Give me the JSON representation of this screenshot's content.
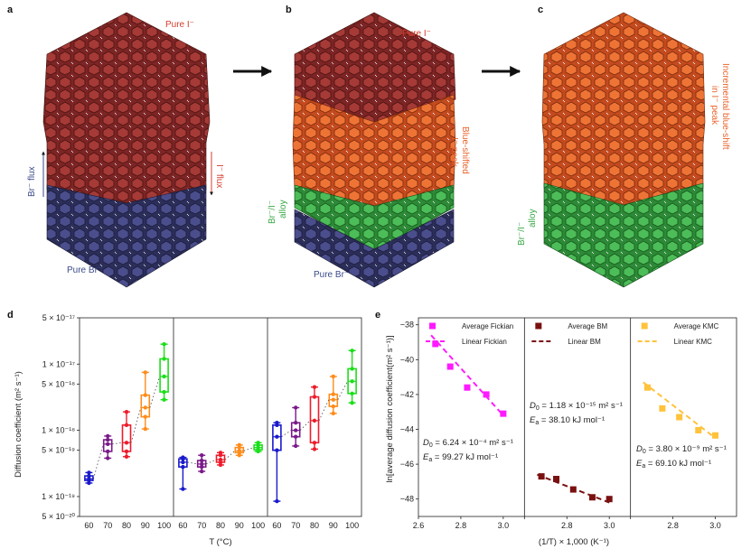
{
  "colors": {
    "iodide": "#8b2a2a",
    "iodide_light": "#e8642c",
    "bromide": "#3d3f78",
    "alloy": "#3ea84a",
    "label_red": "#d43c2c",
    "label_blue": "#3a4a8a",
    "label_green": "#3aa845",
    "label_orange": "#e8642c",
    "magenta": "#ff1aff",
    "maroon": "#7a1010",
    "yellow": "#ffc23a"
  },
  "panels": {
    "a": {
      "letter": "a",
      "top_label": "Pure I⁻",
      "bottom_label": "Pure Br⁻",
      "br_flux": "Br⁻ flux",
      "i_flux": "I⁻ flux"
    },
    "b": {
      "letter": "b",
      "top_label": "Pure I⁻",
      "middle_label_1": "Blue-shifted",
      "middle_label_2": "I⁻ peak",
      "alloy_label_1": "Br⁻/I⁻",
      "alloy_label_2": "alloy",
      "bottom_label": "Pure Br⁻"
    },
    "c": {
      "letter": "c",
      "right_label_1": "Incremental blue-shift",
      "right_label_2": "in I⁻ peak",
      "alloy_label_1": "Br⁻/I⁻",
      "alloy_label_2": "alloy"
    },
    "d": {
      "letter": "d",
      "xlabel": "T (°C)",
      "ylabel": "Diffusion coefficient (m² s⁻¹)"
    },
    "e": {
      "letter": "e",
      "xlabel": "(1/T) × 1,000 (K⁻¹)",
      "ylabel": "ln[average diffusion coefficient(m² s⁻¹)]"
    }
  },
  "chart_data": [
    {
      "type": "box",
      "panel": "d",
      "title": "",
      "xlabel": "T (°C)",
      "ylabel": "Diffusion coefficient (m² s⁻¹)",
      "yscale": "log",
      "ylim": [
        5e-20,
        5e-17
      ],
      "ytick_values": [
        5e-20,
        1e-19,
        5e-19,
        1e-18,
        5e-18,
        1e-17,
        5e-17
      ],
      "ytick_labels": [
        "5 × 10⁻²⁰",
        "1 × 10⁻¹⁹",
        "5 × 10⁻¹⁹",
        "1 × 10⁻¹⁸",
        "5 × 10⁻¹⁸",
        "1 × 10⁻¹⁷",
        "5 × 10⁻¹⁷"
      ],
      "categories": [
        "60",
        "70",
        "80",
        "90",
        "100"
      ],
      "category_colors": [
        "#1a1acc",
        "#7a1a8a",
        "#ee1c2c",
        "#ff8c1a",
        "#1adf1a"
      ],
      "groups": [
        {
          "name": "Fickian",
          "boxes": [
            {
              "min": 1.6e-19,
              "q1": 1.75e-19,
              "median": 1.85e-19,
              "q3": 2.05e-19,
              "max": 2.3e-19
            },
            {
              "min": 3.8e-19,
              "q1": 4.8e-19,
              "median": 6.2e-19,
              "q3": 7.2e-19,
              "max": 8.2e-19
            },
            {
              "min": 4e-19,
              "q1": 4.8e-19,
              "median": 6.5e-19,
              "q3": 1.2e-18,
              "max": 1.9e-18
            },
            {
              "min": 1.05e-18,
              "q1": 1.6e-18,
              "median": 2.2e-18,
              "q3": 3.4e-18,
              "max": 7.5e-18
            },
            {
              "min": 2.9e-18,
              "q1": 3.8e-18,
              "median": 6.5e-18,
              "q3": 1.2e-17,
              "max": 2e-17
            }
          ]
        },
        {
          "name": "BM",
          "boxes": [
            {
              "min": 1.3e-19,
              "q1": 2.8e-19,
              "median": 3.3e-19,
              "q3": 3.7e-19,
              "max": 3.9e-19
            },
            {
              "min": 2.4e-19,
              "q1": 2.8e-19,
              "median": 3.1e-19,
              "q3": 3.5e-19,
              "max": 4.2e-19
            },
            {
              "min": 3e-19,
              "q1": 3.3e-19,
              "median": 3.6e-19,
              "q3": 4.2e-19,
              "max": 4.6e-19
            },
            {
              "min": 4.2e-19,
              "q1": 4.6e-19,
              "median": 4.9e-19,
              "q3": 5.5e-19,
              "max": 6e-19
            },
            {
              "min": 4.8e-19,
              "q1": 5.1e-19,
              "median": 5.5e-19,
              "q3": 6e-19,
              "max": 6.5e-19
            }
          ]
        },
        {
          "name": "KMC",
          "boxes": [
            {
              "min": 8.5e-20,
              "q1": 5e-19,
              "median": 8e-19,
              "q3": 1.2e-18,
              "max": 1.3e-18
            },
            {
              "min": 5.8e-19,
              "q1": 8e-19,
              "median": 1e-18,
              "q3": 1.3e-18,
              "max": 2.2e-18
            },
            {
              "min": 5.2e-19,
              "q1": 6.5e-19,
              "median": 1.4e-18,
              "q3": 3.2e-18,
              "max": 4.5e-18
            },
            {
              "min": 1.8e-18,
              "q1": 2.3e-18,
              "median": 2.9e-18,
              "q3": 3.5e-18,
              "max": 6.5e-18
            },
            {
              "min": 2.6e-18,
              "q1": 3.6e-18,
              "median": 5.5e-18,
              "q3": 8.5e-18,
              "max": 1.6e-17
            }
          ]
        }
      ]
    },
    {
      "type": "scatter",
      "panel": "e",
      "xlabel": "(1/T) × 1,000 (K⁻¹)",
      "ylabel": "ln[average diffusion coefficient(m² s⁻¹)]",
      "ylim": [
        -49,
        -37.6
      ],
      "ytick_values": [
        -38,
        -40,
        -42,
        -44,
        -46,
        -48
      ],
      "ytick_labels": [
        "−38",
        "−40",
        "−42",
        "−44",
        "−46",
        "−48"
      ],
      "xlim": [
        2.6,
        3.1
      ],
      "xtick_values": [
        2.6,
        2.8,
        3.0
      ],
      "xtick_labels": [
        "2.6",
        "2.8",
        "3.0"
      ],
      "series": [
        {
          "name": "Fickian",
          "color": "#ff1aff",
          "legend_marker": "Average Fickian",
          "legend_line": "Linear Fickian",
          "x": [
            2.68,
            2.75,
            2.83,
            2.92,
            3.0
          ],
          "y": [
            -39.1,
            -40.4,
            -41.6,
            -42.0,
            -43.1
          ],
          "fit_x": [
            2.66,
            3.0
          ],
          "fit_y": [
            -38.6,
            -43.2
          ],
          "d0_value": "6.24 × 10⁻⁴ m² s⁻¹",
          "ea_value": "99.27 kJ mol⁻¹"
        },
        {
          "name": "BM",
          "color": "#7a1010",
          "legend_marker": "Average BM",
          "legend_line": "Linear BM",
          "x": [
            2.68,
            2.75,
            2.83,
            2.92,
            3.0
          ],
          "y": [
            -46.7,
            -46.85,
            -47.45,
            -47.9,
            -48.0
          ],
          "fit_x": [
            2.66,
            3.0
          ],
          "fit_y": [
            -46.6,
            -48.2
          ],
          "d0_value": "1.18 × 10⁻¹⁵ m² s⁻¹",
          "ea_value": "38.10 kJ mol⁻¹"
        },
        {
          "name": "KMC",
          "color": "#ffc23a",
          "legend_marker": "Average KMC",
          "legend_line": "Linear KMC",
          "x": [
            2.68,
            2.75,
            2.83,
            2.92,
            3.0
          ],
          "y": [
            -41.6,
            -42.8,
            -43.3,
            -44.05,
            -44.35
          ],
          "fit_x": [
            2.66,
            3.0
          ],
          "fit_y": [
            -41.3,
            -44.5
          ],
          "d0_value": "3.80 × 10⁻⁹ m² s⁻¹",
          "ea_value": "69.10 kJ mol⁻¹"
        }
      ]
    }
  ]
}
